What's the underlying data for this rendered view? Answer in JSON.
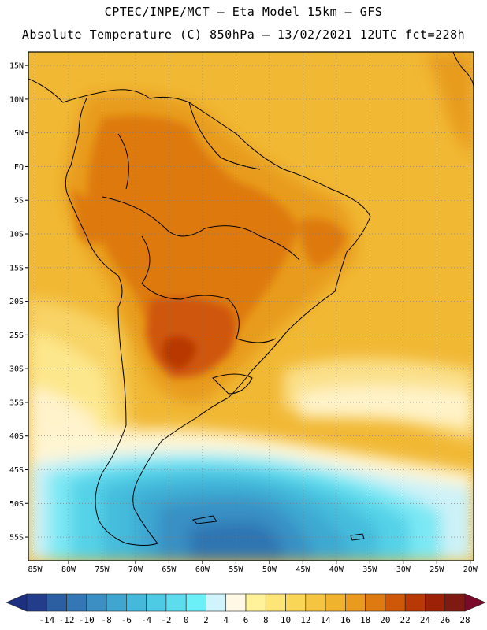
{
  "header": {
    "line1": "CPTEC/INPE/MCT –  Eta Model 15km – GFS",
    "line2": "Absolute Temperature (C) 850hPa – 13/02/2021 12UTC fct=228h"
  },
  "map": {
    "lon_range": [
      -86,
      -19.5
    ],
    "lat_range": [
      -58.5,
      17
    ],
    "lon_ticks": [
      {
        "value": -85,
        "label": "85W"
      },
      {
        "value": -80,
        "label": "80W"
      },
      {
        "value": -75,
        "label": "75W"
      },
      {
        "value": -70,
        "label": "70W"
      },
      {
        "value": -65,
        "label": "65W"
      },
      {
        "value": -60,
        "label": "60W"
      },
      {
        "value": -55,
        "label": "55W"
      },
      {
        "value": -50,
        "label": "50W"
      },
      {
        "value": -45,
        "label": "45W"
      },
      {
        "value": -40,
        "label": "40W"
      },
      {
        "value": -35,
        "label": "35W"
      },
      {
        "value": -30,
        "label": "30W"
      },
      {
        "value": -25,
        "label": "25W"
      },
      {
        "value": -20,
        "label": "20W"
      }
    ],
    "lat_ticks": [
      {
        "value": 15,
        "label": "15N"
      },
      {
        "value": 10,
        "label": "10N"
      },
      {
        "value": 5,
        "label": "5N"
      },
      {
        "value": 0,
        "label": "EQ"
      },
      {
        "value": -5,
        "label": "5S"
      },
      {
        "value": -10,
        "label": "10S"
      },
      {
        "value": -15,
        "label": "15S"
      },
      {
        "value": -20,
        "label": "20S"
      },
      {
        "value": -25,
        "label": "25S"
      },
      {
        "value": -30,
        "label": "30S"
      },
      {
        "value": -35,
        "label": "35S"
      },
      {
        "value": -40,
        "label": "40S"
      },
      {
        "value": -45,
        "label": "45S"
      },
      {
        "value": -50,
        "label": "50S"
      },
      {
        "value": -55,
        "label": "55S"
      }
    ],
    "grid": true
  },
  "colorbar": {
    "labels": [
      "-14",
      "-12",
      "-10",
      "-8",
      "-6",
      "-4",
      "-2",
      "0",
      "2",
      "4",
      "6",
      "8",
      "10",
      "12",
      "14",
      "16",
      "18",
      "20",
      "22",
      "24",
      "26",
      "28"
    ],
    "under_color": "#1c2f80",
    "over_color": "#7a0a2a",
    "colors": [
      "#233d8a",
      "#2c5ea2",
      "#3477b4",
      "#3b8fc2",
      "#40a6cf",
      "#45b9da",
      "#4ecbe4",
      "#5ddcee",
      "#6cf0f8",
      "#cff4fb",
      "#fff8e4",
      "#fff29a",
      "#fde676",
      "#f9d656",
      "#f4c540",
      "#efb32d",
      "#e89b1e",
      "#de7a10",
      "#cf5708",
      "#b83806",
      "#9c2107",
      "#7d1a12"
    ]
  }
}
